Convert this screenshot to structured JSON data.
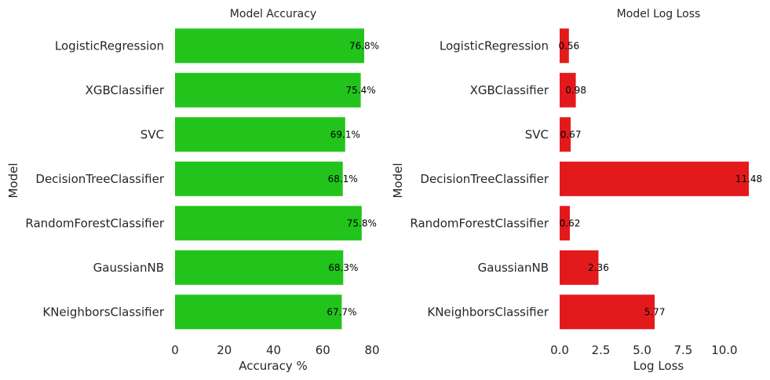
{
  "chart_data": [
    {
      "type": "bar",
      "orientation": "horizontal",
      "title": "Model Accuracy",
      "xlabel": "Accuracy %",
      "ylabel": "Model",
      "categories": [
        "LogisticRegression",
        "XGBClassifier",
        "SVC",
        "DecisionTreeClassifier",
        "RandomForestClassifier",
        "GaussianNB",
        "KNeighborsClassifier"
      ],
      "values": [
        76.8,
        75.4,
        69.1,
        68.1,
        75.8,
        68.3,
        67.7
      ],
      "data_labels": [
        "76.8%",
        "75.4%",
        "69.1%",
        "68.1%",
        "75.8%",
        "68.3%",
        "67.7%"
      ],
      "xlim": [
        0,
        80
      ],
      "xticks": [
        0,
        20,
        40,
        60,
        80
      ],
      "xtick_labels": [
        "0",
        "20",
        "40",
        "60",
        "80"
      ],
      "bar_color": "#22c41c",
      "grid": false
    },
    {
      "type": "bar",
      "orientation": "horizontal",
      "title": "Model Log Loss",
      "xlabel": "Log Loss",
      "ylabel": "Model",
      "categories": [
        "LogisticRegression",
        "XGBClassifier",
        "SVC",
        "DecisionTreeClassifier",
        "RandomForestClassifier",
        "GaussianNB",
        "KNeighborsClassifier"
      ],
      "values": [
        0.56,
        0.98,
        0.67,
        11.48,
        0.62,
        2.36,
        5.77
      ],
      "data_labels": [
        "0.56",
        "0.98",
        "0.67",
        "11.48",
        "0.62",
        "2.36",
        "5.77"
      ],
      "xlim": [
        0,
        11.48
      ],
      "xticks": [
        0,
        2.5,
        5,
        7.5,
        10
      ],
      "xtick_labels": [
        "0.0",
        "2.5",
        "5.0",
        "7.5",
        "10.0"
      ],
      "bar_color": "#e31a1c",
      "grid": false
    }
  ]
}
